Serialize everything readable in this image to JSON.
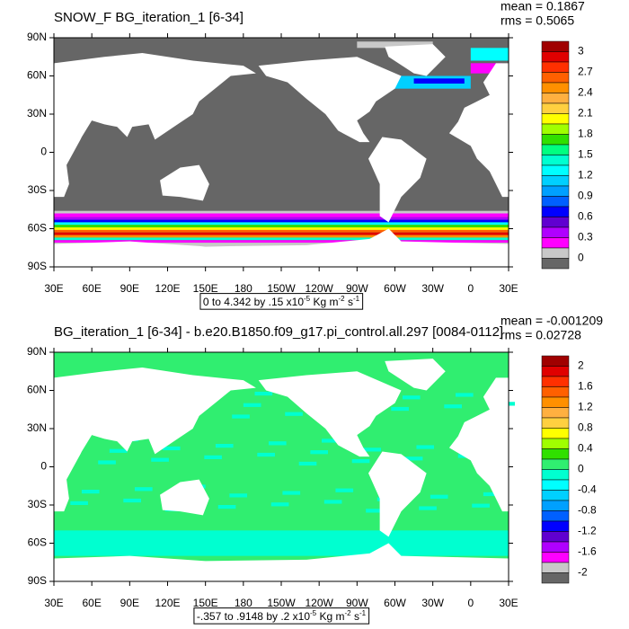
{
  "panels": [
    {
      "title": "SNOW_F BG_iteration_1 [6-34]",
      "mean": "mean = 0.1867",
      "rms": "rms = 0.5065",
      "y_labels": [
        "90N",
        "60N",
        "30N",
        "0",
        "30S",
        "60S",
        "90S"
      ],
      "x_labels": [
        "30E",
        "60E",
        "90E",
        "120E",
        "150E",
        "180",
        "150W",
        "120W",
        "90W",
        "60W",
        "30W",
        "0",
        "30E"
      ],
      "info": [
        "0 to 4.342 by .15 x10",
        "-5",
        " Kg m",
        "-2",
        " s",
        "-1"
      ],
      "colorbar_labels": [
        "3",
        "2.7",
        "2.4",
        "2.1",
        "1.8",
        "1.5",
        "1.2",
        "0.9",
        "0.6",
        "0.3",
        "0"
      ],
      "colorbar_colors": [
        "#a00000",
        "#e00000",
        "#ff3000",
        "#ff6000",
        "#ff9000",
        "#ffb040",
        "#ffd040",
        "#ffff00",
        "#a0ff00",
        "#30e000",
        "#00ff80",
        "#00ffd0",
        "#00ffff",
        "#00d0ff",
        "#00a0ff",
        "#0060ff",
        "#0000ff",
        "#6000d0",
        "#b000ff",
        "#ff00ff",
        "#c8c8c8",
        "#666666"
      ]
    },
    {
      "title": "BG_iteration_1 [6-34] - b.e20.B1850.f09_g17.pi_control.all.297 [0084-0112]",
      "mean": "mean = -0.001209",
      "rms": "rms = 0.02728",
      "y_labels": [
        "90N",
        "60N",
        "30N",
        "0",
        "30S",
        "60S",
        "90S"
      ],
      "x_labels": [
        "30E",
        "60E",
        "90E",
        "120E",
        "150E",
        "180",
        "150W",
        "120W",
        "90W",
        "60W",
        "30W",
        "0",
        "30E"
      ],
      "info": [
        "-.357 to .9148 by .2 x10",
        "-5",
        " Kg m",
        "-2",
        " s",
        "-1"
      ],
      "colorbar_labels": [
        "2",
        "1.6",
        "1.2",
        "0.8",
        "0.4",
        "0",
        "-0.4",
        "-0.8",
        "-1.2",
        "-1.6",
        "-2"
      ],
      "colorbar_colors": [
        "#a00000",
        "#e00000",
        "#ff3000",
        "#ff6000",
        "#ff9000",
        "#ffb040",
        "#ffd040",
        "#ffff00",
        "#a0ff00",
        "#30e000",
        "#30ee70",
        "#00ffd0",
        "#00ffff",
        "#00d0ff",
        "#00a0ff",
        "#0060ff",
        "#0000ff",
        "#6000d0",
        "#b000ff",
        "#ff00ff",
        "#c8c8c8",
        "#666666"
      ]
    }
  ]
}
